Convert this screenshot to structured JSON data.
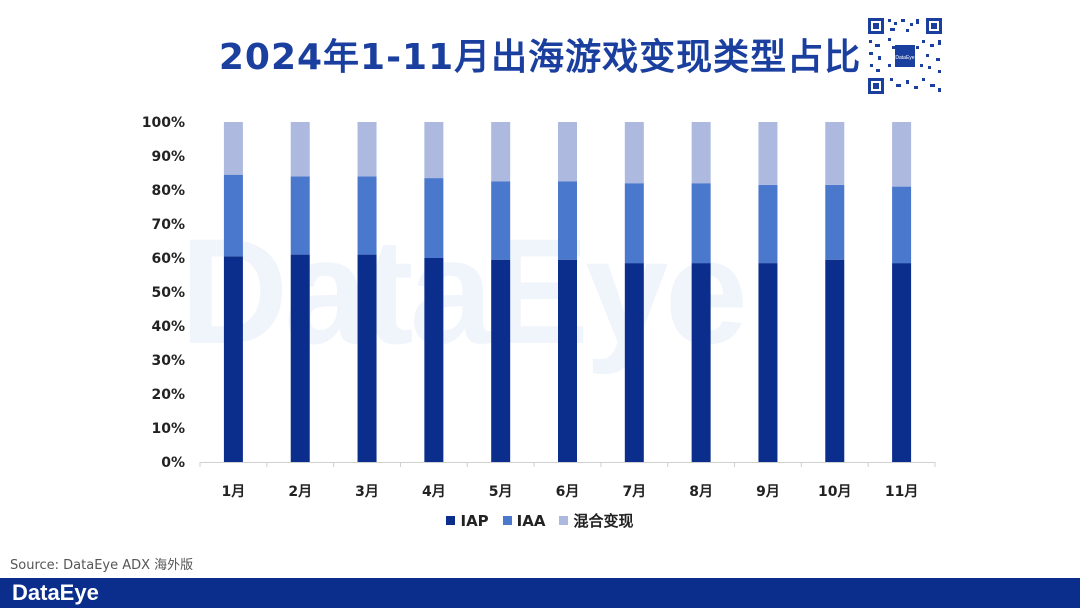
{
  "title": "2024年1-11月出海游戏变现类型占比",
  "watermark": "DataEye",
  "source": "Source: DataEye ADX 海外版",
  "footer_logo": "DataEye",
  "qr_label": "DataEye",
  "colors": {
    "IAP": "#0b2e8c",
    "IAA": "#4a78cc",
    "混合变现": "#adb9df",
    "title": "#1a3f9e",
    "footer": "#0b2e8c"
  },
  "chart_data": {
    "type": "bar",
    "stacked": true,
    "title": "2024年1-11月出海游戏变现类型占比",
    "categories": [
      "1月",
      "2月",
      "3月",
      "4月",
      "5月",
      "6月",
      "7月",
      "8月",
      "9月",
      "10月",
      "11月"
    ],
    "series": [
      {
        "name": "IAP",
        "values": [
          60.5,
          61.0,
          61.0,
          60.0,
          59.5,
          59.5,
          58.5,
          58.5,
          58.5,
          59.5,
          58.5
        ]
      },
      {
        "name": "IAA",
        "values": [
          24.0,
          23.0,
          23.0,
          23.5,
          23.0,
          23.0,
          23.5,
          23.5,
          23.0,
          22.0,
          22.5
        ]
      },
      {
        "name": "混合变现",
        "values": [
          15.5,
          16.0,
          16.0,
          16.5,
          17.5,
          17.5,
          18.0,
          18.0,
          18.5,
          18.5,
          19.0
        ]
      }
    ],
    "ylim": [
      0,
      100
    ],
    "yticks": [
      "0%",
      "10%",
      "20%",
      "30%",
      "40%",
      "50%",
      "60%",
      "70%",
      "80%",
      "90%",
      "100%"
    ],
    "legend_position": "bottom",
    "grid": false
  }
}
